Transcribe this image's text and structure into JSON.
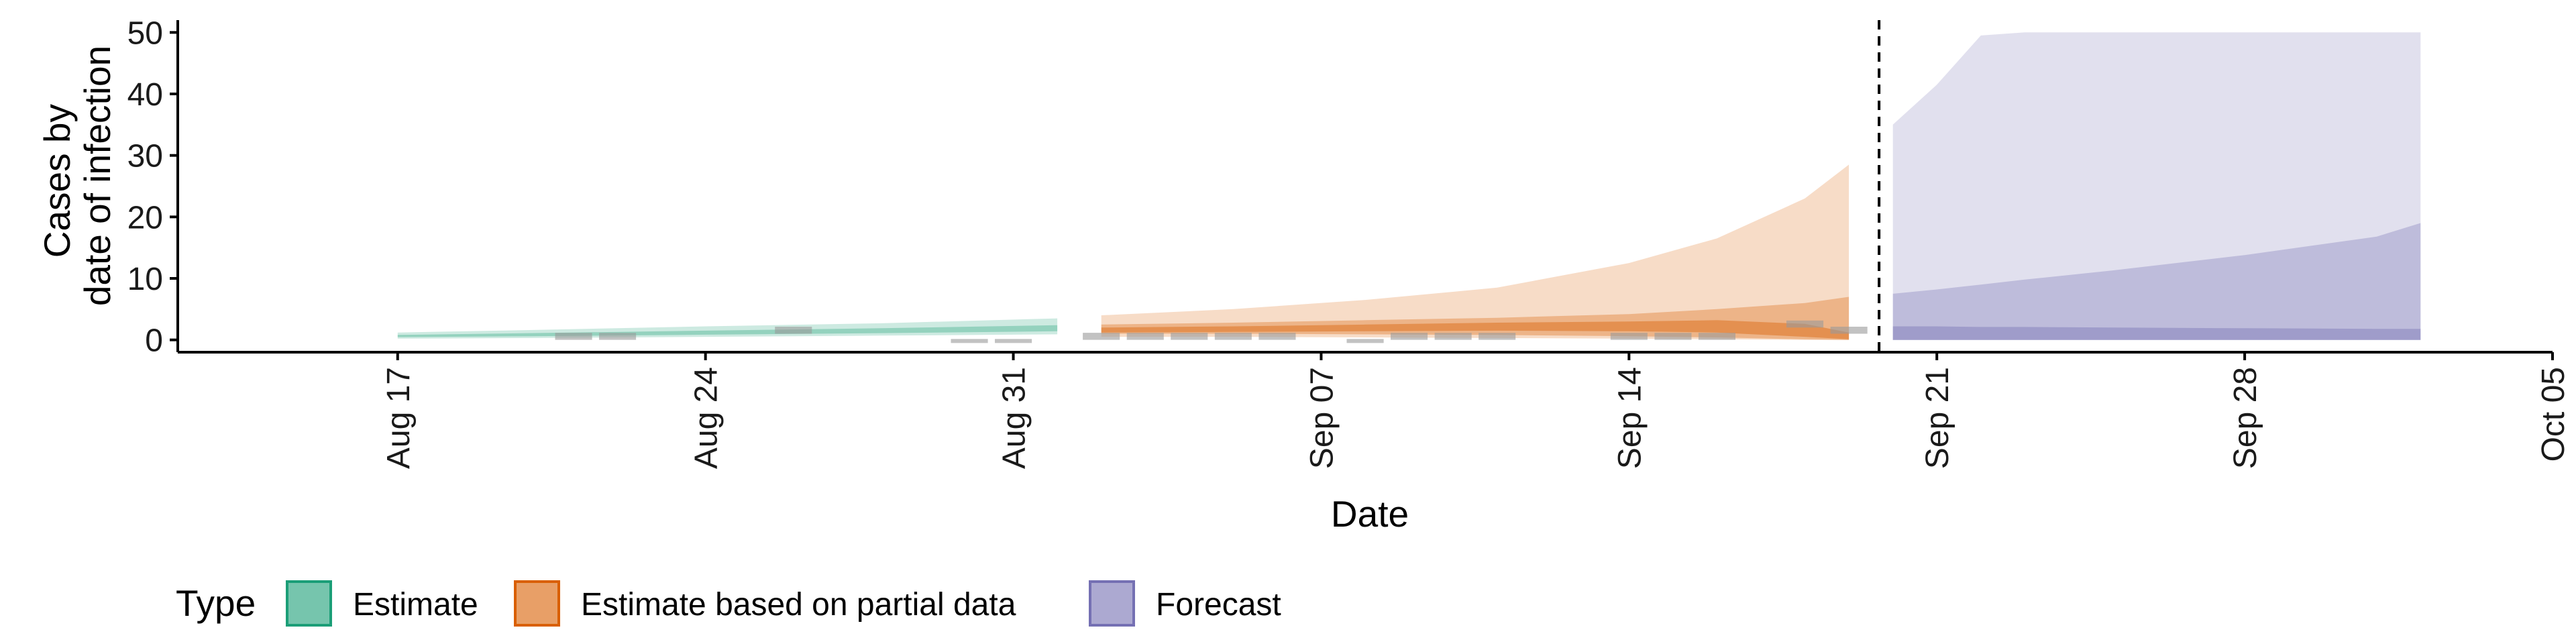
{
  "chart_data": {
    "type": "area",
    "ylabel_lines": [
      "Cases by",
      "date of infection"
    ],
    "xlabel": "Date",
    "ylim": [
      -2,
      52
    ],
    "yticks": [
      0,
      10,
      20,
      30,
      40,
      50
    ],
    "xlim": [
      "2021-08-12",
      "2021-10-05"
    ],
    "xticks": [
      {
        "date": "2021-08-17",
        "label": "Aug 17"
      },
      {
        "date": "2021-08-24",
        "label": "Aug 24"
      },
      {
        "date": "2021-08-31",
        "label": "Aug 31"
      },
      {
        "date": "2021-09-07",
        "label": "Sep 07"
      },
      {
        "date": "2021-09-14",
        "label": "Sep 14"
      },
      {
        "date": "2021-09-21",
        "label": "Sep 21"
      },
      {
        "date": "2021-09-28",
        "label": "Sep 28"
      },
      {
        "date": "2021-10-05",
        "label": "Oct 05"
      }
    ],
    "forecast_start_date": "2021-09-19",
    "legend": {
      "title": "Type",
      "position": "bottom",
      "items": [
        {
          "label": "Estimate",
          "color": "#1b9e77"
        },
        {
          "label": "Estimate based on partial data",
          "color": "#d95f02"
        },
        {
          "label": "Forecast",
          "color": "#7570b3"
        }
      ]
    },
    "series": [
      {
        "name": "Estimate",
        "color": "#1b9e77",
        "dates": [
          "2021-08-17",
          "2021-08-20",
          "2021-08-24",
          "2021-08-28",
          "2021-09-01"
        ],
        "outer_lower": [
          0.2,
          0.3,
          0.5,
          0.7,
          0.9
        ],
        "outer_upper": [
          1.2,
          1.6,
          2.2,
          2.7,
          3.5
        ],
        "mid_lower": [
          0.45,
          0.6,
          0.85,
          1.1,
          1.4
        ],
        "mid_upper": [
          0.8,
          1.1,
          1.5,
          1.9,
          2.4
        ]
      },
      {
        "name": "Estimate based on partial data",
        "color": "#d95f02",
        "dates": [
          "2021-09-02",
          "2021-09-05",
          "2021-09-08",
          "2021-09-11",
          "2021-09-14",
          "2021-09-16",
          "2021-09-18",
          "2021-09-19"
        ],
        "outer_lower": [
          0.5,
          0.5,
          0.4,
          0.3,
          0.2,
          0.1,
          0.0,
          0.0
        ],
        "outer_upper": [
          4.0,
          5.0,
          6.5,
          8.5,
          12.5,
          16.5,
          23.0,
          28.5
        ],
        "mid_lower": [
          1.0,
          1.0,
          0.9,
          0.8,
          0.6,
          0.4,
          0.1,
          0.0
        ],
        "mid_upper": [
          2.5,
          2.8,
          3.2,
          3.6,
          4.2,
          5.0,
          6.0,
          7.0
        ],
        "inner_lower": [
          1.2,
          1.3,
          1.4,
          1.5,
          1.4,
          1.2,
          0.5,
          0.1
        ],
        "inner_upper": [
          2.0,
          2.2,
          2.5,
          2.8,
          3.0,
          3.2,
          2.6,
          1.2
        ]
      },
      {
        "name": "Forecast",
        "color": "#7570b3",
        "dates": [
          "2021-09-20",
          "2021-09-21",
          "2021-09-22",
          "2021-09-23",
          "2021-09-25",
          "2021-09-28",
          "2021-10-01",
          "2021-10-02"
        ],
        "outer_lower": [
          0,
          0,
          0,
          0,
          0,
          0,
          0,
          0
        ],
        "outer_upper": [
          35.0,
          41.5,
          49.5,
          50.0,
          50.0,
          50.0,
          50.0,
          50.0
        ],
        "mid_lower": [
          0,
          0,
          0,
          0,
          0,
          0,
          0,
          0
        ],
        "mid_upper": [
          7.5,
          8.2,
          9.0,
          9.8,
          11.3,
          13.8,
          16.8,
          19.0
        ],
        "inner_lower": [
          0,
          0,
          0,
          0,
          0,
          0,
          0,
          0
        ],
        "inner_upper": [
          2.2,
          2.2,
          2.1,
          2.1,
          2.0,
          1.9,
          1.8,
          1.8
        ]
      }
    ],
    "observations": {
      "color": "#999999",
      "points": [
        {
          "date": "2021-08-21",
          "value": 1
        },
        {
          "date": "2021-08-22",
          "value": 1
        },
        {
          "date": "2021-08-26",
          "value": 2
        },
        {
          "date": "2021-08-30",
          "value": 0
        },
        {
          "date": "2021-08-31",
          "value": 0
        },
        {
          "date": "2021-09-02",
          "value": 1
        },
        {
          "date": "2021-09-03",
          "value": 1
        },
        {
          "date": "2021-09-04",
          "value": 1
        },
        {
          "date": "2021-09-05",
          "value": 1
        },
        {
          "date": "2021-09-06",
          "value": 1
        },
        {
          "date": "2021-09-08",
          "value": 0
        },
        {
          "date": "2021-09-09",
          "value": 1
        },
        {
          "date": "2021-09-10",
          "value": 1
        },
        {
          "date": "2021-09-11",
          "value": 1
        },
        {
          "date": "2021-09-14",
          "value": 1
        },
        {
          "date": "2021-09-15",
          "value": 1
        },
        {
          "date": "2021-09-16",
          "value": 1
        },
        {
          "date": "2021-09-18",
          "value": 3
        },
        {
          "date": "2021-09-19",
          "value": 2
        }
      ]
    }
  }
}
